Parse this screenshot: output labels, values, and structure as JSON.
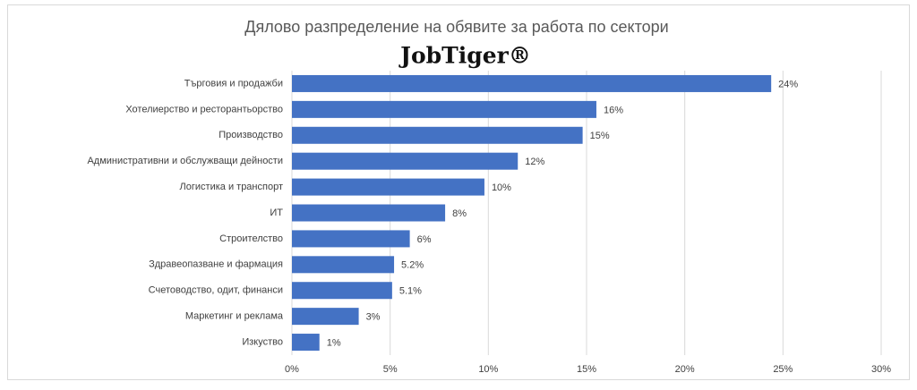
{
  "chart_data": {
    "type": "barh",
    "title": "Дялово разпределение на обявите за работа по сектори",
    "logo": "JobTiger®",
    "categories": [
      "Търговия и продажби",
      "Хотелиерство и ресторантьорство",
      "Производство",
      "Административни и обслужващи дейности",
      "Логистика и транспорт",
      "ИТ",
      "Строителство",
      "Здравеопазване и фармация",
      "Счетоводство, одит, финанси",
      "Маркетинг и реклама",
      "Изкуство"
    ],
    "values": [
      24.4,
      15.5,
      14.8,
      11.5,
      9.8,
      7.8,
      6.0,
      5.2,
      5.1,
      3.4,
      1.4
    ],
    "value_labels": [
      "24%",
      "16%",
      "15%",
      "12%",
      "10%",
      "8%",
      "6%",
      "5.2%",
      "5.1%",
      "3%",
      "1%"
    ],
    "color": "#4472c4",
    "xlim": [
      0,
      30
    ],
    "xticks": [
      {
        "value": 0,
        "label": "0%"
      },
      {
        "value": 5,
        "label": "5%"
      },
      {
        "value": 10,
        "label": "10%"
      },
      {
        "value": 15,
        "label": "15%"
      },
      {
        "value": 20,
        "label": "20%"
      },
      {
        "value": 25,
        "label": "25%"
      },
      {
        "value": 30,
        "label": "30%"
      }
    ],
    "grid": true
  }
}
